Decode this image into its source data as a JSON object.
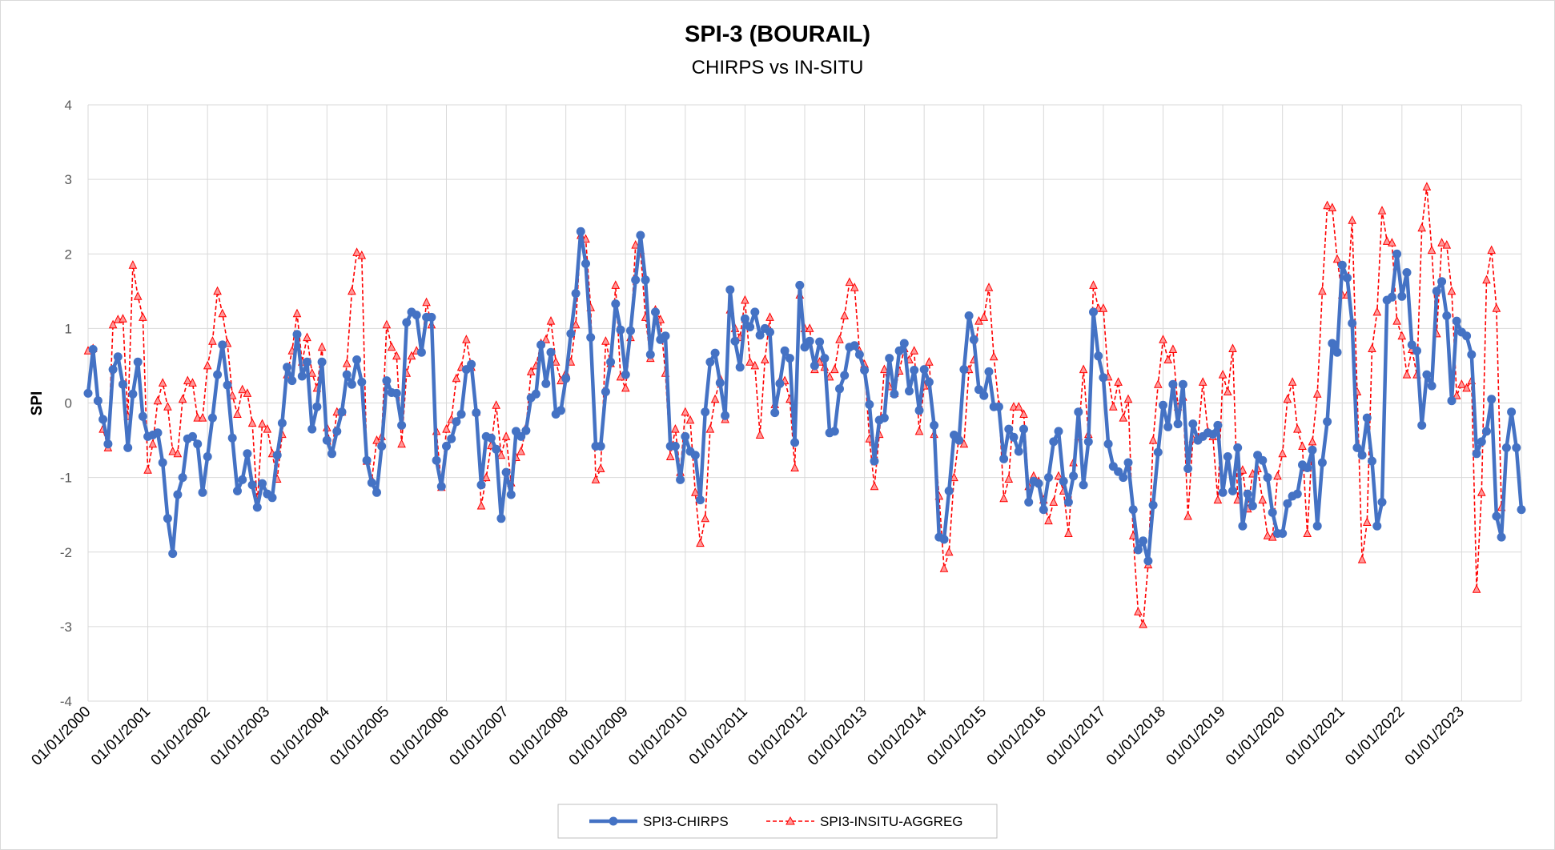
{
  "chart_data": {
    "type": "line",
    "title": "SPI-3 (BOURAIL)",
    "subtitle": "CHIRPS vs IN-SITU",
    "xlabel": "",
    "ylabel": "SPI",
    "ylim": [
      -4,
      4
    ],
    "yticks": [
      "4",
      "3",
      "2",
      "1",
      "0",
      "-1",
      "-2",
      "-3",
      "-4"
    ],
    "x_start": "2000-01",
    "frequency": "monthly",
    "xticks": [
      "01/01/2000",
      "01/01/2001",
      "01/01/2002",
      "01/01/2003",
      "01/01/2004",
      "01/01/2005",
      "01/01/2006",
      "01/01/2007",
      "01/01/2008",
      "01/01/2009",
      "01/01/2010",
      "01/01/2011",
      "01/01/2012",
      "01/01/2013",
      "01/01/2014",
      "01/01/2015",
      "01/01/2016",
      "01/01/2017",
      "01/01/2018",
      "01/01/2019",
      "01/01/2020",
      "01/01/2021",
      "01/01/2022",
      "01/01/2023"
    ],
    "grid": true,
    "legend_position": "bottom",
    "series": [
      {
        "name": "SPI3-CHIRPS",
        "color": "#4472C4",
        "line_style": "solid",
        "marker": "circle",
        "values": [
          0.13,
          0.72,
          0.03,
          -0.22,
          -0.55,
          0.45,
          0.62,
          0.25,
          -0.6,
          0.12,
          0.55,
          -0.18,
          -0.45,
          -0.43,
          -0.4,
          -0.8,
          -1.55,
          -2.02,
          -1.23,
          -1.0,
          -0.48,
          -0.45,
          -0.55,
          -1.2,
          -0.72,
          -0.2,
          0.38,
          0.78,
          0.24,
          -0.47,
          -1.18,
          -1.03,
          -0.68,
          -1.1,
          -1.4,
          -1.08,
          -1.22,
          -1.27,
          -0.7,
          -0.27,
          0.48,
          0.3,
          0.92,
          0.36,
          0.55,
          -0.35,
          -0.05,
          0.55,
          -0.5,
          -0.68,
          -0.38,
          -0.12,
          0.38,
          0.25,
          0.58,
          0.28,
          -0.77,
          -1.07,
          -1.2,
          -0.58,
          0.3,
          0.14,
          0.13,
          -0.3,
          1.08,
          1.22,
          1.18,
          0.68,
          1.15,
          1.15,
          -0.77,
          -1.12,
          -0.58,
          -0.48,
          -0.25,
          -0.15,
          0.45,
          0.52,
          -0.13,
          -1.1,
          -0.45,
          -0.47,
          -0.62,
          -1.55,
          -0.93,
          -1.23,
          -0.38,
          -0.45,
          -0.37,
          0.07,
          0.12,
          0.78,
          0.26,
          0.68,
          -0.15,
          -0.1,
          0.33,
          0.93,
          1.47,
          2.3,
          1.87,
          0.88,
          -0.58,
          -0.58,
          0.15,
          0.55,
          1.33,
          0.98,
          0.38,
          0.97,
          1.65,
          2.25,
          1.65,
          0.65,
          1.22,
          0.85,
          0.9,
          -0.58,
          -0.58,
          -1.03,
          -0.45,
          -0.65,
          -0.7,
          -1.3,
          -0.12,
          0.55,
          0.67,
          0.27,
          -0.17,
          1.52,
          0.83,
          0.48,
          1.13,
          1.02,
          1.22,
          0.91,
          1.0,
          0.95,
          -0.13,
          0.26,
          0.7,
          0.6,
          -0.53,
          1.58,
          0.75,
          0.83,
          0.5,
          0.82,
          0.6,
          -0.4,
          -0.38,
          0.19,
          0.37,
          0.75,
          0.77,
          0.65,
          0.44,
          -0.02,
          -0.78,
          -0.23,
          -0.2,
          0.6,
          0.12,
          0.7,
          0.8,
          0.16,
          0.44,
          -0.1,
          0.45,
          0.28,
          -0.3,
          -1.8,
          -1.83,
          -1.18,
          -0.43,
          -0.5,
          0.45,
          1.17,
          0.85,
          0.18,
          0.1,
          0.42,
          -0.05,
          -0.05,
          -0.75,
          -0.35,
          -0.46,
          -0.65,
          -0.35,
          -1.33,
          -1.05,
          -1.08,
          -1.43,
          -1.0,
          -0.52,
          -0.38,
          -1.05,
          -1.33,
          -0.98,
          -0.12,
          -1.1,
          -0.52,
          1.22,
          0.63,
          0.34,
          -0.55,
          -0.85,
          -0.92,
          -1.0,
          -0.8,
          -1.43,
          -1.97,
          -1.85,
          -2.12,
          -1.37,
          -0.66,
          -0.03,
          -0.32,
          0.25,
          -0.28,
          0.25,
          -0.88,
          -0.28,
          -0.5,
          -0.45,
          -0.4,
          -0.42,
          -0.3,
          -1.2,
          -0.72,
          -1.18,
          -0.6,
          -1.65,
          -1.22,
          -1.38,
          -0.7,
          -0.77,
          -1.0,
          -1.47,
          -1.75,
          -1.75,
          -1.35,
          -1.25,
          -1.22,
          -0.83,
          -0.87,
          -0.63,
          -1.65,
          -0.8,
          -0.25,
          0.8,
          0.68,
          1.85,
          1.68,
          1.07,
          -0.6,
          -0.7,
          -0.2,
          -0.78,
          -1.65,
          -1.33,
          1.38,
          1.42,
          2.0,
          1.43,
          1.75,
          0.78,
          0.7,
          -0.3,
          0.38,
          0.23,
          1.5,
          1.63,
          1.17,
          0.03,
          1.1,
          0.95,
          0.9,
          0.65,
          -0.68,
          -0.52,
          -0.38,
          0.05,
          -1.52,
          -1.8,
          -0.6,
          -0.12,
          -0.6,
          -1.43
        ]
      },
      {
        "name": "SPI3-INSITU-AGGREG",
        "color": "#FF0000",
        "line_style": "dashed",
        "marker": "triangle",
        "values": [
          0.7,
          0.73,
          0.05,
          -0.35,
          -0.6,
          1.05,
          1.12,
          1.13,
          -0.18,
          1.85,
          1.43,
          1.15,
          -0.9,
          -0.55,
          0.03,
          0.27,
          -0.05,
          -0.65,
          -0.68,
          0.05,
          0.3,
          0.27,
          -0.2,
          -0.2,
          0.5,
          0.83,
          1.5,
          1.2,
          0.8,
          0.1,
          -0.15,
          0.18,
          0.13,
          -0.27,
          -1.35,
          -0.28,
          -0.35,
          -0.68,
          -1.02,
          -0.42,
          0.38,
          0.7,
          1.2,
          0.55,
          0.88,
          0.4,
          0.2,
          0.75,
          -0.33,
          -0.65,
          -0.12,
          -0.12,
          0.53,
          1.5,
          2.02,
          1.98,
          -0.78,
          -1.03,
          -0.5,
          -0.45,
          1.05,
          0.75,
          0.63,
          -0.55,
          0.4,
          0.63,
          0.7,
          0.72,
          1.35,
          1.05,
          -0.38,
          -1.13,
          -0.35,
          -0.22,
          0.33,
          0.48,
          0.85,
          0.48,
          -0.12,
          -1.38,
          -1.0,
          -0.57,
          -0.03,
          -0.7,
          -0.45,
          -1.07,
          -0.73,
          -0.65,
          -0.33,
          0.42,
          0.5,
          0.8,
          0.85,
          1.1,
          0.55,
          0.3,
          0.4,
          0.55,
          1.05,
          2.25,
          2.2,
          1.28,
          -1.03,
          -0.88,
          0.83,
          0.53,
          1.58,
          0.35,
          0.2,
          0.88,
          2.12,
          2.05,
          1.15,
          0.6,
          1.25,
          1.12,
          0.4,
          -0.72,
          -0.35,
          -0.93,
          -0.12,
          -0.23,
          -1.2,
          -1.88,
          -1.55,
          -0.35,
          0.05,
          0.33,
          -0.22,
          1.25,
          1.0,
          0.88,
          1.38,
          0.55,
          0.5,
          -0.43,
          0.58,
          1.15,
          -0.02,
          0.3,
          0.3,
          0.05,
          -0.87,
          1.45,
          1.0,
          1.0,
          0.45,
          0.55,
          0.48,
          0.35,
          0.45,
          0.85,
          1.17,
          1.62,
          1.55,
          0.7,
          0.52,
          -0.48,
          -1.12,
          -0.42,
          0.45,
          0.22,
          0.13,
          0.43,
          0.73,
          0.58,
          0.7,
          -0.38,
          0.23,
          0.55,
          -0.42,
          -1.25,
          -2.22,
          -2.0,
          -1.0,
          -0.45,
          -0.55,
          0.45,
          0.58,
          1.1,
          1.15,
          1.55,
          0.62,
          -0.02,
          -1.28,
          -1.02,
          -0.05,
          -0.05,
          -0.15,
          -1.12,
          -0.98,
          -1.05,
          -1.3,
          -1.58,
          -1.33,
          -0.98,
          -1.18,
          -1.75,
          -0.8,
          -0.45,
          0.45,
          -0.42,
          1.58,
          1.27,
          1.27,
          0.35,
          -0.05,
          0.28,
          -0.2,
          0.05,
          -1.78,
          -2.8,
          -2.97,
          -2.17,
          -0.5,
          0.25,
          0.85,
          0.58,
          0.72,
          -0.05,
          0.08,
          -1.52,
          -0.48,
          -0.48,
          0.28,
          -0.38,
          -0.45,
          -1.3,
          0.38,
          0.15,
          0.73,
          -1.3,
          -0.9,
          -1.42,
          -0.95,
          -0.88,
          -1.3,
          -1.78,
          -1.8,
          -0.98,
          -0.68,
          0.05,
          0.28,
          -0.35,
          -0.58,
          -1.75,
          -0.52,
          0.12,
          1.5,
          2.65,
          2.62,
          1.93,
          1.45,
          1.45,
          2.45,
          0.15,
          -2.1,
          -1.6,
          0.73,
          1.22,
          2.58,
          2.17,
          2.15,
          1.1,
          0.9,
          0.38,
          0.72,
          0.38,
          2.35,
          2.9,
          2.05,
          0.93,
          2.15,
          2.12,
          1.5,
          0.1,
          0.25,
          0.2,
          0.3,
          -2.5,
          -1.2,
          1.65,
          2.05,
          1.27,
          -1.4
        ]
      }
    ]
  }
}
